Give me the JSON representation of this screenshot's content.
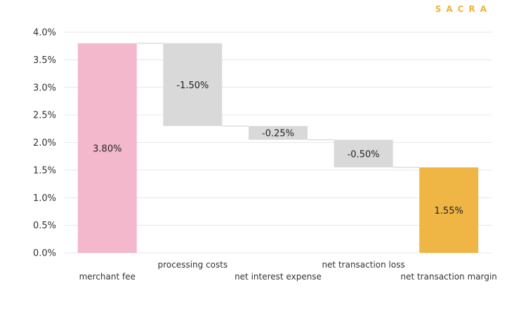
{
  "brand": {
    "name": "SACRA",
    "color": "#f0b23a"
  },
  "chart_data": {
    "type": "bar",
    "subtype": "waterfall",
    "categories": [
      "merchant fee",
      "processing costs",
      "net interest expense",
      "net transaction loss",
      "net transaction margin"
    ],
    "values": [
      3.8,
      -1.5,
      -0.25,
      -0.5,
      1.55
    ],
    "data_labels": [
      "3.80%",
      "-1.50%",
      "-0.25%",
      "-0.50%",
      "1.55%"
    ],
    "bar_kinds": [
      "total",
      "delta",
      "delta",
      "delta",
      "total"
    ],
    "colors": {
      "start_total": "#f3b8cc",
      "delta": "#d9d9d9",
      "end_total": "#f0b645",
      "connector": "#cccccc",
      "grid": "#e6e6e6"
    },
    "ylim": [
      0,
      4.0
    ],
    "yticks": [
      0,
      0.5,
      1.0,
      1.5,
      2.0,
      2.5,
      3.0,
      3.5,
      4.0
    ],
    "ytick_labels": [
      "0.0%",
      "0.5%",
      "1.0%",
      "1.5%",
      "2.0%",
      "2.5%",
      "3.0%",
      "3.5%",
      "4.0%"
    ],
    "grid": true,
    "legend": "none"
  }
}
